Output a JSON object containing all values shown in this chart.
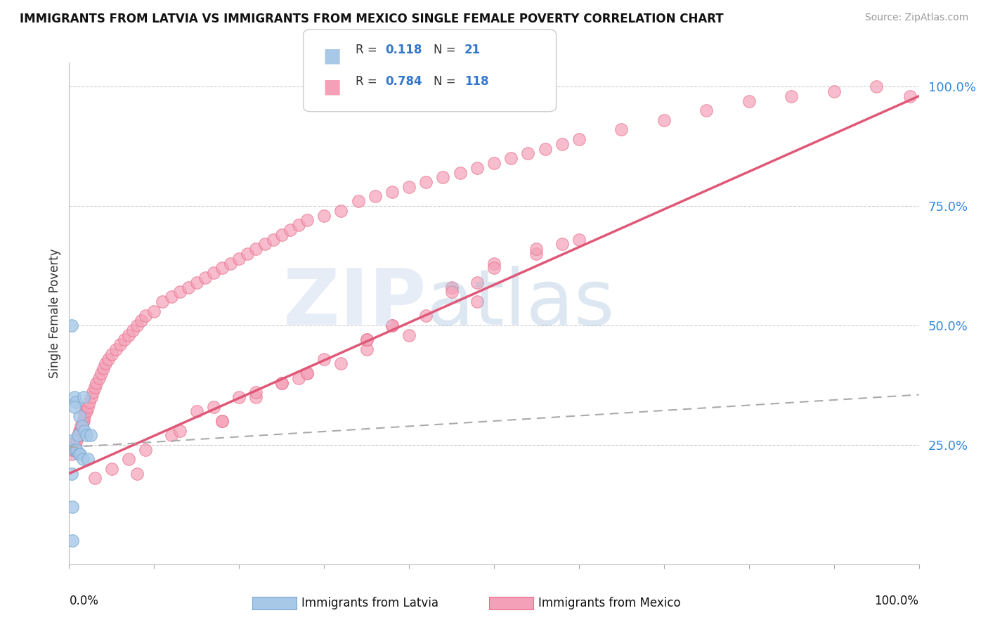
{
  "title": "IMMIGRANTS FROM LATVIA VS IMMIGRANTS FROM MEXICO SINGLE FEMALE POVERTY CORRELATION CHART",
  "source": "Source: ZipAtlas.com",
  "ylabel": "Single Female Poverty",
  "y_ticks": [
    0.0,
    0.25,
    0.5,
    0.75,
    1.0
  ],
  "y_tick_labels": [
    "",
    "25.0%",
    "50.0%",
    "75.0%",
    "100.0%"
  ],
  "x_lim": [
    0.0,
    1.0
  ],
  "y_lim": [
    0.0,
    1.05
  ],
  "latvia_color": "#a8c8e8",
  "mexico_color": "#f4a0b8",
  "latvia_edge_color": "#7aaad0",
  "mexico_edge_color": "#e8708a",
  "latvia_line_color": "#88aacc",
  "mexico_line_color": "#e05878",
  "legend_R_color": "#3377cc",
  "latvia_points_x": [
    0.003,
    0.004,
    0.005,
    0.006,
    0.007,
    0.008,
    0.009,
    0.01,
    0.011,
    0.012,
    0.013,
    0.015,
    0.016,
    0.017,
    0.018,
    0.02,
    0.022,
    0.025,
    0.003,
    0.004,
    0.006
  ],
  "latvia_points_y": [
    0.5,
    0.12,
    0.26,
    0.35,
    0.24,
    0.34,
    0.24,
    0.27,
    0.23,
    0.31,
    0.23,
    0.29,
    0.22,
    0.35,
    0.28,
    0.27,
    0.22,
    0.27,
    0.19,
    0.05,
    0.33
  ],
  "mexico_points_x": [
    0.003,
    0.004,
    0.005,
    0.006,
    0.007,
    0.008,
    0.009,
    0.01,
    0.011,
    0.012,
    0.013,
    0.014,
    0.015,
    0.016,
    0.017,
    0.018,
    0.019,
    0.02,
    0.022,
    0.024,
    0.026,
    0.028,
    0.03,
    0.032,
    0.035,
    0.038,
    0.04,
    0.043,
    0.046,
    0.05,
    0.055,
    0.06,
    0.065,
    0.07,
    0.075,
    0.08,
    0.085,
    0.09,
    0.1,
    0.11,
    0.12,
    0.13,
    0.14,
    0.15,
    0.16,
    0.17,
    0.18,
    0.19,
    0.2,
    0.21,
    0.22,
    0.23,
    0.24,
    0.25,
    0.26,
    0.27,
    0.28,
    0.3,
    0.32,
    0.34,
    0.36,
    0.38,
    0.4,
    0.42,
    0.44,
    0.46,
    0.48,
    0.5,
    0.52,
    0.54,
    0.56,
    0.58,
    0.6,
    0.65,
    0.7,
    0.75,
    0.8,
    0.85,
    0.9,
    0.95,
    0.99,
    0.35,
    0.4,
    0.22,
    0.25,
    0.18,
    0.15,
    0.12,
    0.28,
    0.3,
    0.2,
    0.5,
    0.55,
    0.6,
    0.45,
    0.35,
    0.25,
    0.38,
    0.42,
    0.48,
    0.32,
    0.27,
    0.22,
    0.17,
    0.13,
    0.09,
    0.07,
    0.05,
    0.03,
    0.5,
    0.58,
    0.48,
    0.38,
    0.28,
    0.18,
    0.08,
    0.55,
    0.45,
    0.35
  ],
  "mexico_points_y": [
    0.23,
    0.24,
    0.24,
    0.25,
    0.25,
    0.26,
    0.26,
    0.27,
    0.27,
    0.28,
    0.28,
    0.29,
    0.29,
    0.3,
    0.3,
    0.31,
    0.32,
    0.32,
    0.33,
    0.34,
    0.35,
    0.36,
    0.37,
    0.38,
    0.39,
    0.4,
    0.41,
    0.42,
    0.43,
    0.44,
    0.45,
    0.46,
    0.47,
    0.48,
    0.49,
    0.5,
    0.51,
    0.52,
    0.53,
    0.55,
    0.56,
    0.57,
    0.58,
    0.59,
    0.6,
    0.61,
    0.62,
    0.63,
    0.64,
    0.65,
    0.66,
    0.67,
    0.68,
    0.69,
    0.7,
    0.71,
    0.72,
    0.73,
    0.74,
    0.76,
    0.77,
    0.78,
    0.79,
    0.8,
    0.81,
    0.82,
    0.83,
    0.84,
    0.85,
    0.86,
    0.87,
    0.88,
    0.89,
    0.91,
    0.93,
    0.95,
    0.97,
    0.98,
    0.99,
    1.0,
    0.98,
    0.45,
    0.48,
    0.35,
    0.38,
    0.3,
    0.32,
    0.27,
    0.4,
    0.43,
    0.35,
    0.63,
    0.65,
    0.68,
    0.58,
    0.47,
    0.38,
    0.5,
    0.52,
    0.55,
    0.42,
    0.39,
    0.36,
    0.33,
    0.28,
    0.24,
    0.22,
    0.2,
    0.18,
    0.62,
    0.67,
    0.59,
    0.5,
    0.4,
    0.3,
    0.19,
    0.66,
    0.57,
    0.47
  ],
  "latvia_line_x": [
    0.0,
    1.0
  ],
  "latvia_line_y": [
    0.245,
    0.355
  ],
  "mexico_line_x": [
    0.0,
    1.0
  ],
  "mexico_line_y": [
    0.19,
    0.98
  ]
}
